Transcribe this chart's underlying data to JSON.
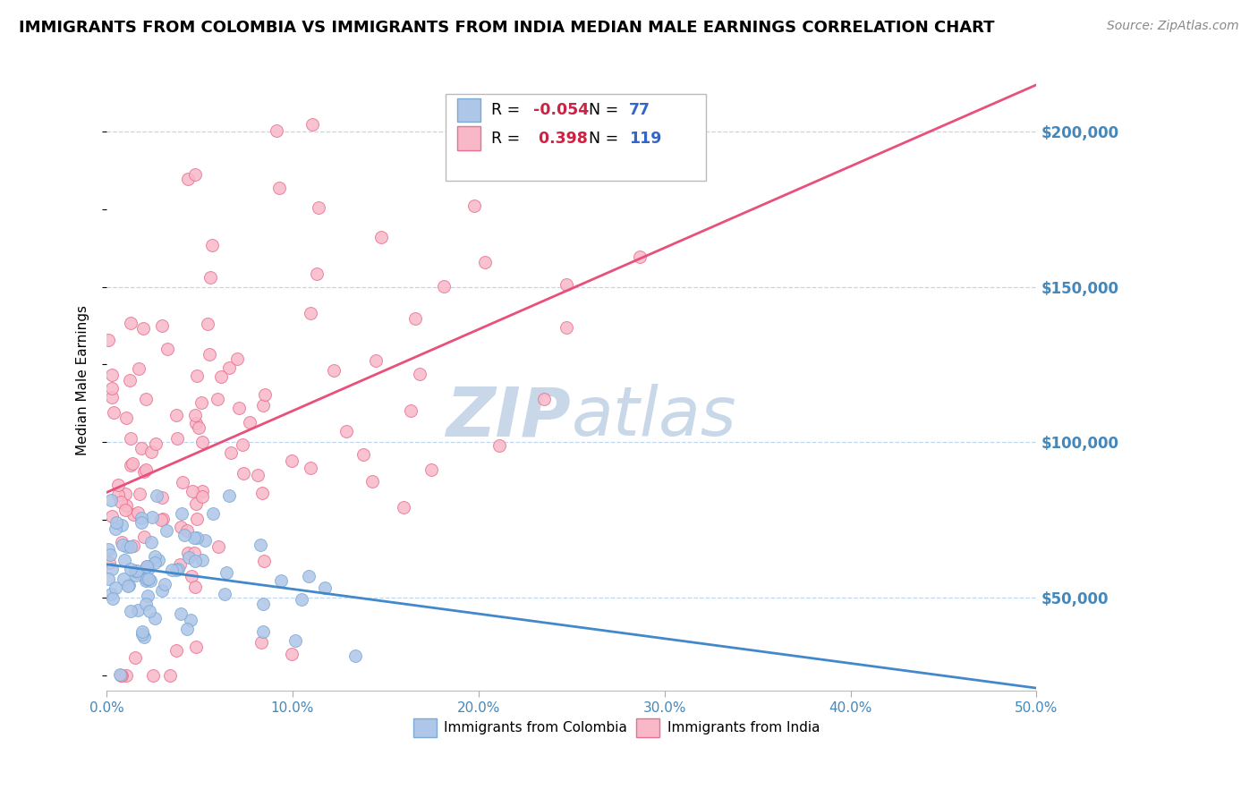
{
  "title": "IMMIGRANTS FROM COLOMBIA VS IMMIGRANTS FROM INDIA MEDIAN MALE EARNINGS CORRELATION CHART",
  "source": "Source: ZipAtlas.com",
  "xlabel_colombia": "Immigrants from Colombia",
  "xlabel_india": "Immigrants from India",
  "ylabel": "Median Male Earnings",
  "colombia_R": -0.054,
  "colombia_N": 77,
  "india_R": 0.398,
  "india_N": 119,
  "colombia_color": "#AEC6E8",
  "colombia_edge": "#7BAAD4",
  "india_color": "#F9B8C8",
  "india_edge": "#E87090",
  "colombia_line_color": "#4488CC",
  "india_line_color": "#E8507A",
  "watermark_color": "#C8D8E8",
  "xlim": [
    0.0,
    0.5
  ],
  "ylim": [
    20000,
    220000
  ],
  "yticks": [
    50000,
    100000,
    150000,
    200000
  ],
  "xticks": [
    0.0,
    0.1,
    0.2,
    0.3,
    0.4,
    0.5
  ],
  "xtick_labels": [
    "0.0%",
    "10.0%",
    "20.0%",
    "30.0%",
    "40.0%",
    "50.0%"
  ],
  "ytick_labels": [
    "$50,000",
    "$100,000",
    "$150,000",
    "$200,000"
  ],
  "background_color": "#FFFFFF",
  "grid_color": "#C0D8EE",
  "title_fontsize": 13,
  "tick_label_color": "#4488BB",
  "legend_R_color": "#CC2244",
  "legend_N_color": "#3366CC"
}
